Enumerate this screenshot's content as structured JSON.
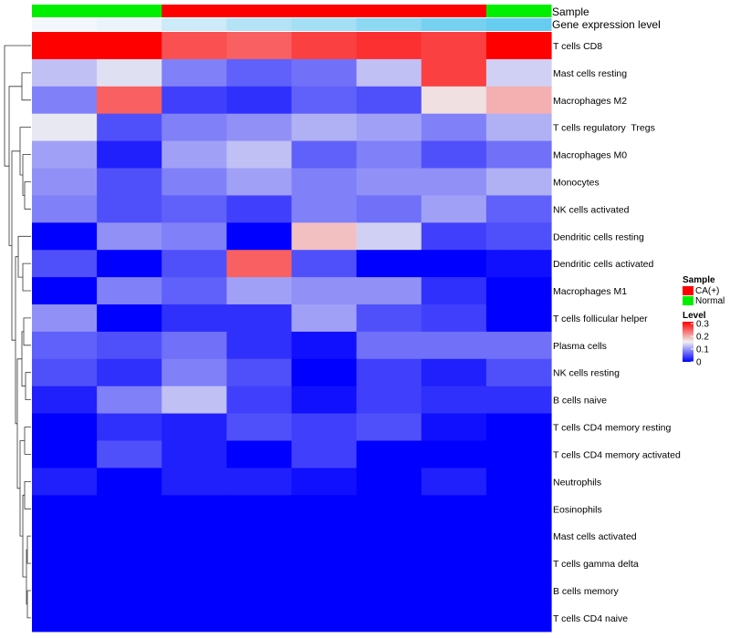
{
  "chart_data": {
    "type": "heatmap",
    "annotation_tracks": [
      {
        "name": "Sample",
        "values": [
          "Normal",
          "Normal",
          "CA(+)",
          "CA(+)",
          "CA(+)",
          "CA(+)",
          "CA(+)",
          "Normal"
        ]
      },
      {
        "name": "Gene expression level",
        "values": [
          0.02,
          0.03,
          0.07,
          0.1,
          0.12,
          0.15,
          0.18,
          0.2
        ]
      }
    ],
    "rows": [
      "T cells CD8",
      "Mast cells resting",
      "Macrophages M2",
      "T cells regulatory  Tregs",
      "Macrophages M0",
      "Monocytes",
      "NK cells activated",
      "Dendritic cells resting",
      "Dendritic cells activated",
      "Macrophages M1",
      "T cells follicular helper",
      "Plasma cells",
      "NK cells resting",
      "B cells naive",
      "T cells CD4 memory resting",
      "T cells CD4 memory activated",
      "Neutrophils",
      "Eosinophils",
      "Mast cells activated",
      "T cells gamma delta",
      "B cells memory",
      "T cells CD4 naive"
    ],
    "values": [
      [
        0.3,
        0.3,
        0.25,
        0.24,
        0.26,
        0.27,
        0.26,
        0.3
      ],
      [
        0.12,
        0.14,
        0.08,
        0.06,
        0.07,
        0.12,
        0.26,
        0.13
      ],
      [
        0.08,
        0.24,
        0.04,
        0.03,
        0.06,
        0.05,
        0.16,
        0.19
      ],
      [
        0.145,
        0.05,
        0.08,
        0.09,
        0.11,
        0.1,
        0.08,
        0.11
      ],
      [
        0.1,
        0.02,
        0.1,
        0.12,
        0.06,
        0.08,
        0.05,
        0.07
      ],
      [
        0.09,
        0.05,
        0.08,
        0.1,
        0.08,
        0.09,
        0.09,
        0.11
      ],
      [
        0.08,
        0.05,
        0.06,
        0.04,
        0.08,
        0.07,
        0.1,
        0.06
      ],
      [
        0.0,
        0.09,
        0.08,
        0.0,
        0.18,
        0.13,
        0.04,
        0.05
      ],
      [
        0.05,
        0.0,
        0.05,
        0.24,
        0.05,
        0.0,
        0.0,
        0.01
      ],
      [
        0.0,
        0.08,
        0.06,
        0.1,
        0.09,
        0.09,
        0.03,
        0.0
      ],
      [
        0.09,
        0.0,
        0.03,
        0.03,
        0.1,
        0.05,
        0.04,
        0.0
      ],
      [
        0.06,
        0.05,
        0.07,
        0.03,
        0.01,
        0.07,
        0.07,
        0.07
      ],
      [
        0.05,
        0.03,
        0.08,
        0.05,
        0.0,
        0.04,
        0.02,
        0.05
      ],
      [
        0.02,
        0.08,
        0.12,
        0.04,
        0.01,
        0.04,
        0.03,
        0.03
      ],
      [
        0.0,
        0.03,
        0.02,
        0.05,
        0.04,
        0.05,
        0.01,
        0.0
      ],
      [
        0.0,
        0.05,
        0.02,
        0.0,
        0.04,
        0.0,
        0.0,
        0.0
      ],
      [
        0.02,
        0.0,
        0.02,
        0.02,
        0.01,
        0.0,
        0.02,
        0.0
      ],
      [
        0.0,
        0.0,
        0.0,
        0.0,
        0.0,
        0.0,
        0.0,
        0.0
      ],
      [
        0.0,
        0.0,
        0.0,
        0.0,
        0.0,
        0.0,
        0.0,
        0.0
      ],
      [
        0.0,
        0.0,
        0.0,
        0.0,
        0.0,
        0.0,
        0.0,
        0.0
      ],
      [
        0.0,
        0.0,
        0.0,
        0.0,
        0.0,
        0.0,
        0.0,
        0.0
      ],
      [
        0.0,
        0.0,
        0.0,
        0.0,
        0.0,
        0.0,
        0.0,
        0.0
      ]
    ],
    "color_scale": {
      "name": "Level",
      "min": 0,
      "max": 0.3,
      "stops": [
        {
          "value": 0,
          "color": "#0000ff"
        },
        {
          "value": 0.15,
          "color": "#f0f0f2"
        },
        {
          "value": 0.3,
          "color": "#ff0000"
        }
      ],
      "ticks": [
        "0.3",
        "0.2",
        "0.1",
        "0"
      ]
    },
    "legend": {
      "sample_title": "Sample",
      "sample_entries": [
        {
          "label": "CA(+)",
          "color": "#ff0000"
        },
        {
          "label": "Normal",
          "color": "#00ee00"
        }
      ],
      "level_title": "Level",
      "placement": "right"
    },
    "expression_palette": {
      "low": "#f3f6fb",
      "high": "#66ccf0"
    },
    "dendrogram": "rows"
  }
}
